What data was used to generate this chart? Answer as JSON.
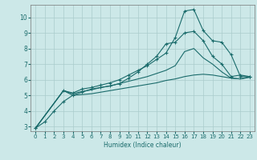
{
  "xlabel": "Humidex (Indice chaleur)",
  "bg_color": "#cce8e8",
  "grid_color": "#aacccc",
  "line_color": "#1a6b6b",
  "xlim": [
    -0.5,
    23.5
  ],
  "ylim": [
    2.7,
    10.8
  ],
  "yticks": [
    3,
    4,
    5,
    6,
    7,
    8,
    9,
    10
  ],
  "xticks": [
    0,
    1,
    2,
    3,
    4,
    5,
    6,
    7,
    8,
    9,
    10,
    11,
    12,
    13,
    14,
    15,
    16,
    17,
    18,
    19,
    20,
    21,
    22,
    23
  ],
  "line1_x": [
    0,
    1,
    2,
    3,
    4,
    5,
    6,
    7,
    8,
    9,
    10,
    11,
    12,
    13,
    14,
    15,
    16,
    17,
    18,
    19,
    20,
    21,
    22,
    23
  ],
  "line1_y": [
    2.9,
    3.3,
    4.0,
    4.6,
    5.0,
    5.2,
    5.4,
    5.5,
    5.6,
    5.75,
    6.1,
    6.5,
    7.0,
    7.5,
    8.3,
    8.4,
    9.0,
    9.1,
    8.5,
    7.5,
    7.0,
    6.2,
    6.3,
    6.2
  ],
  "line2_x": [
    0,
    3,
    4,
    5,
    6,
    7,
    8,
    9,
    10,
    11,
    12,
    13,
    14,
    15,
    16,
    17,
    18,
    19,
    20,
    21,
    22,
    23
  ],
  "line2_y": [
    2.9,
    5.3,
    5.15,
    5.4,
    5.5,
    5.65,
    5.8,
    6.0,
    6.3,
    6.6,
    6.9,
    7.3,
    7.7,
    8.7,
    10.4,
    10.5,
    9.15,
    8.5,
    8.4,
    7.6,
    6.2,
    6.2
  ],
  "line3_x": [
    0,
    3,
    4,
    5,
    6,
    7,
    8,
    9,
    10,
    11,
    12,
    13,
    14,
    15,
    16,
    17,
    18,
    19,
    20,
    21,
    22,
    23
  ],
  "line3_y": [
    2.9,
    5.3,
    5.1,
    5.25,
    5.35,
    5.5,
    5.6,
    5.75,
    5.9,
    6.05,
    6.2,
    6.4,
    6.6,
    6.9,
    7.8,
    8.0,
    7.4,
    7.0,
    6.5,
    6.1,
    6.05,
    6.2
  ],
  "line4_x": [
    0,
    3,
    4,
    5,
    6,
    7,
    8,
    9,
    10,
    11,
    12,
    13,
    14,
    15,
    16,
    17,
    18,
    19,
    20,
    21,
    22,
    23
  ],
  "line4_y": [
    2.9,
    5.3,
    5.0,
    5.05,
    5.1,
    5.2,
    5.3,
    5.4,
    5.5,
    5.6,
    5.7,
    5.8,
    5.95,
    6.05,
    6.2,
    6.3,
    6.35,
    6.3,
    6.2,
    6.1,
    6.05,
    6.15
  ]
}
